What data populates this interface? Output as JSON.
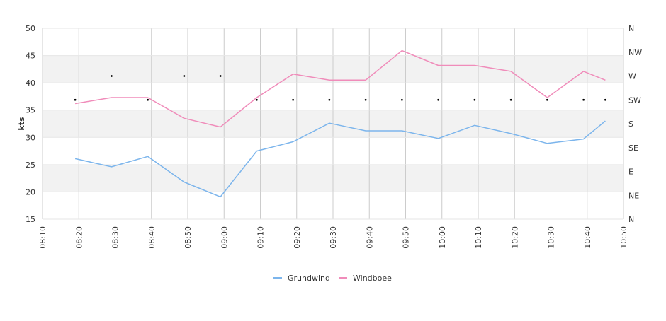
{
  "chart_data": {
    "type": "line",
    "ylabel": "kts",
    "ylim": [
      15,
      50
    ],
    "y_ticks": [
      "15",
      "20",
      "25",
      "30",
      "35",
      "40",
      "45",
      "50"
    ],
    "x_ticks": [
      "08:10",
      "08:20",
      "08:30",
      "08:40",
      "08:50",
      "09:00",
      "09:10",
      "09:20",
      "09:30",
      "09:40",
      "09:50",
      "10:00",
      "10:10",
      "10:20",
      "10:30",
      "10:40",
      "10:50"
    ],
    "y2_ticks": [
      "N",
      "NE",
      "E",
      "SE",
      "S",
      "SW",
      "W",
      "NW",
      "N"
    ],
    "y2_range": [
      0,
      360
    ],
    "x": [
      "08:19",
      "08:29",
      "08:39",
      "08:49",
      "08:59",
      "09:09",
      "09:19",
      "09:29",
      "09:39",
      "09:49",
      "09:59",
      "10:09",
      "10:19",
      "10:29",
      "10:39",
      "10:45"
    ],
    "series": [
      {
        "name": "Grundwind",
        "color": "#7cb5ec",
        "values": [
          26.1,
          24.6,
          26.5,
          21.8,
          19.1,
          27.5,
          29.2,
          32.6,
          31.2,
          31.2,
          29.8,
          32.2,
          30.7,
          28.9,
          29.7,
          33.0
        ]
      },
      {
        "name": "Windboee",
        "color": "#f08cba",
        "values": [
          36.2,
          37.3,
          37.3,
          33.5,
          31.9,
          37.3,
          41.6,
          40.5,
          40.5,
          45.9,
          43.2,
          43.2,
          42.1,
          37.3,
          42.1,
          40.5
        ]
      }
    ],
    "direction": {
      "values": [
        225,
        270,
        225,
        270,
        270,
        225,
        225,
        225,
        225,
        225,
        225,
        225,
        225,
        225,
        225,
        225
      ]
    },
    "grid": true,
    "legend_position": "bottom"
  }
}
